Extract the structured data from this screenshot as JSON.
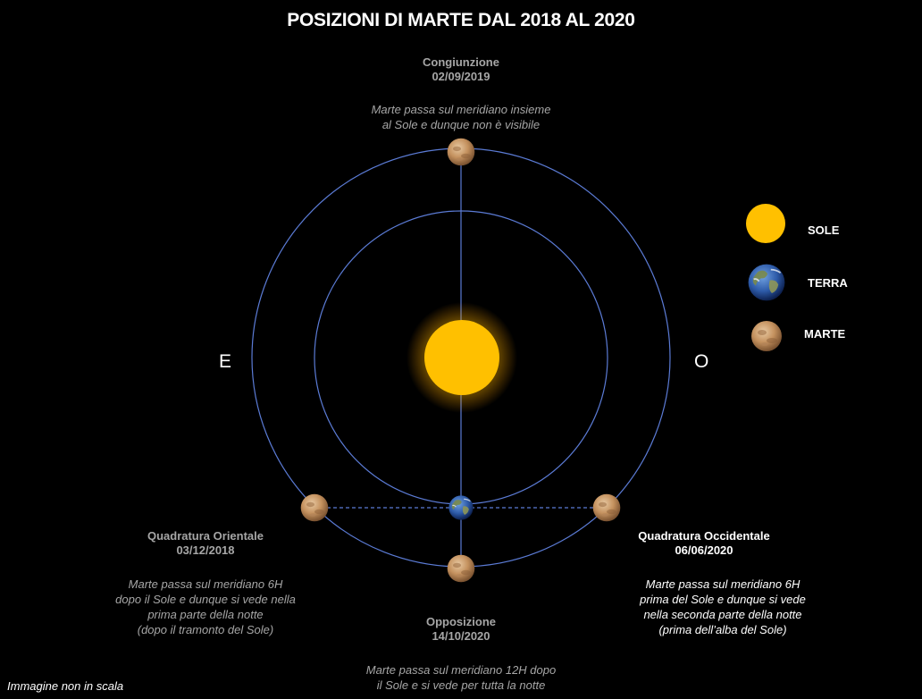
{
  "title": "POSIZIONI DI MARTE DAL 2018 AL 2020",
  "directions": {
    "east": "E",
    "west": "O"
  },
  "positions": {
    "congiunzione": {
      "name": "Congiunzione",
      "date": "02/09/2019",
      "desc": [
        "Marte passa sul meridiano insieme",
        "al Sole e dunque non è visibile"
      ]
    },
    "quadratura_orientale": {
      "name": "Quadratura Orientale",
      "date": "03/12/2018",
      "desc": [
        "Marte passa sul meridiano 6H",
        "dopo il Sole e  dunque si vede nella",
        "prima parte della  notte",
        "(dopo il tramonto del Sole)"
      ]
    },
    "quadratura_occidentale": {
      "name": "Quadratura Occidentale",
      "date": "06/06/2020",
      "desc": [
        "Marte passa sul meridiano 6H",
        "prima del Sole e  dunque si vede",
        "nella seconda parte della  notte",
        "(prima dell’alba del Sole)"
      ]
    },
    "opposizione": {
      "name": "Opposizione",
      "date": "14/10/2020",
      "desc": [
        "Marte passa sul meridiano 12H dopo",
        "il Sole e si vede per tutta la notte"
      ]
    }
  },
  "legend": {
    "sun": "SOLE",
    "earth": "TERRA",
    "mars": "MARTE"
  },
  "note": "Immagine non in scala",
  "colors": {
    "sun": "#ffc000",
    "orbit": "#5b7bd5",
    "grey_text": "#a6a6a6",
    "mars": "#c89a6a",
    "earth": "#2f5aa0"
  }
}
